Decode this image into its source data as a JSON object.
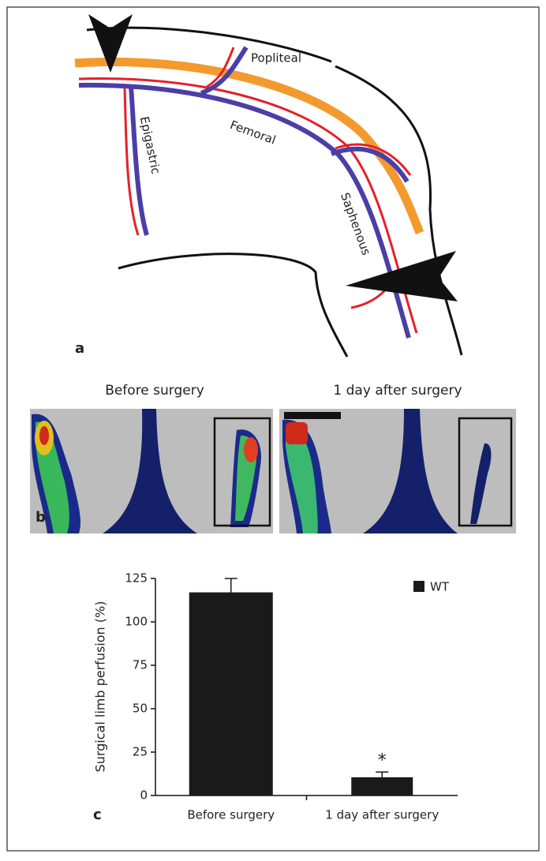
{
  "panel_a": {
    "label": "a",
    "vessels": [
      "Popliteal",
      "Femoral",
      "Epigastric",
      "Saphenous"
    ]
  },
  "panel_b": {
    "label": "b",
    "titles": [
      "Before surgery",
      "1 day after surgery"
    ]
  },
  "chart_data": {
    "type": "bar",
    "panel_label": "c",
    "y_label": "Surgical limb perfusion (%)",
    "categories": [
      "Before surgery",
      "1 day after surgery"
    ],
    "series": [
      {
        "name": "WT",
        "color": "#1a1a1a",
        "values": [
          117,
          10.5
        ],
        "errors": [
          8,
          3
        ]
      }
    ],
    "annotation": "*",
    "ylim": [
      0,
      125
    ],
    "yticks": [
      0,
      25,
      50,
      75,
      100,
      125
    ]
  }
}
